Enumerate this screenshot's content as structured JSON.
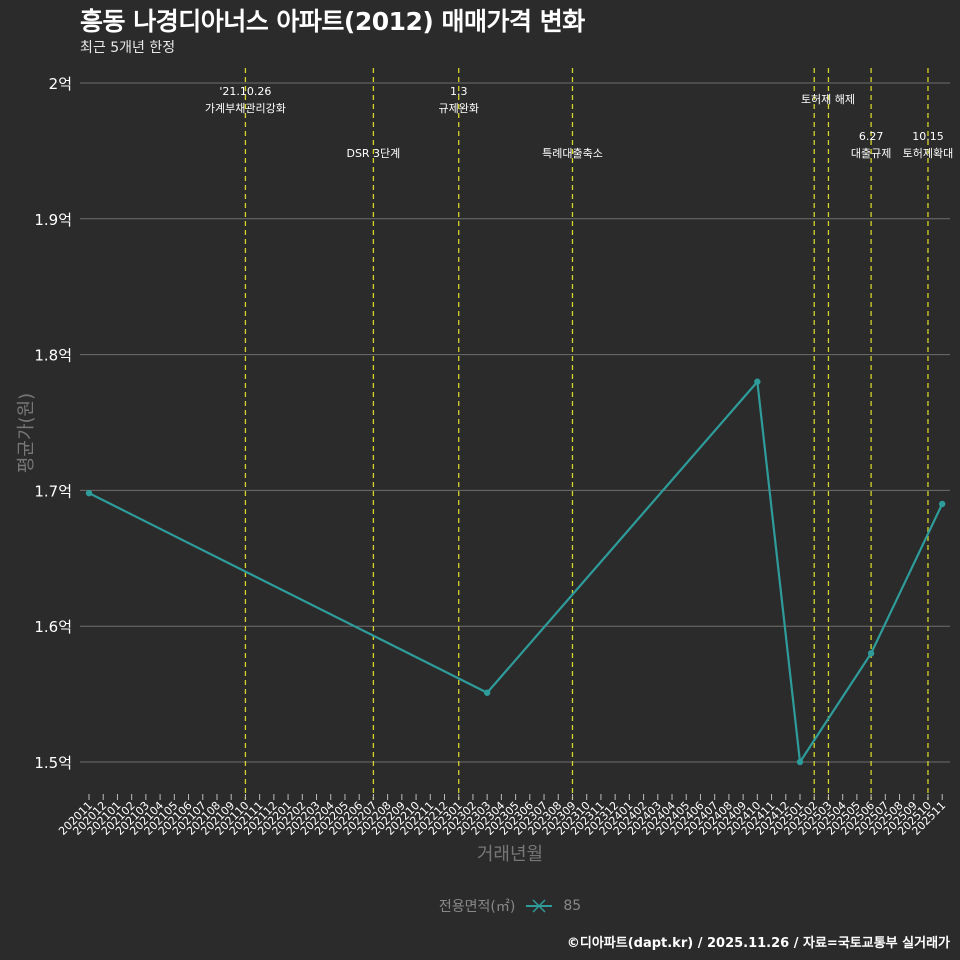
{
  "header": {
    "title": "흥동 나경디아너스 아파트(2012) 매매가격 변화",
    "subtitle": "최근 5개년 한정"
  },
  "axes": {
    "ylabel": "평균가(원)",
    "xlabel": "거래년월"
  },
  "legend": {
    "title": "전용면적(㎡)",
    "items": [
      {
        "label": "85",
        "color": "#2e9c9a"
      }
    ]
  },
  "caption": "©디아파트(dapt.kr) / 2025.11.26 / 자료=국토교통부 실거래가",
  "colors": {
    "background": "#2b2b2b",
    "grid": "#6e6e6e",
    "line": "#2e9c9a",
    "vline": "#d4d42a",
    "text": "#ffffff",
    "muted": "#777777"
  },
  "chart_data": {
    "type": "line",
    "title": "흥동 나경디아너스 아파트(2012) 매매가격 변화",
    "subtitle": "최근 5개년 한정",
    "xlabel": "거래년월",
    "ylabel": "평균가(원)",
    "ylim": [
      1.47,
      2.02
    ],
    "yticks": [
      1.5,
      1.6,
      1.7,
      1.8,
      1.9,
      2.0
    ],
    "ytick_labels": [
      "1.5억",
      "1.6억",
      "1.7억",
      "1.8억",
      "1.9억",
      "2억"
    ],
    "grid": true,
    "legend_position": "bottom",
    "categories": [
      "202011",
      "202012",
      "202101",
      "202102",
      "202103",
      "202104",
      "202105",
      "202106",
      "202107",
      "202108",
      "202109",
      "202110",
      "202111",
      "202112",
      "202201",
      "202202",
      "202203",
      "202204",
      "202205",
      "202206",
      "202207",
      "202208",
      "202209",
      "202210",
      "202211",
      "202212",
      "202301",
      "202302",
      "202303",
      "202304",
      "202305",
      "202306",
      "202307",
      "202308",
      "202309",
      "202310",
      "202311",
      "202312",
      "202401",
      "202402",
      "202403",
      "202404",
      "202405",
      "202406",
      "202407",
      "202408",
      "202409",
      "202410",
      "202411",
      "202412",
      "202501",
      "202502",
      "202503",
      "202504",
      "202505",
      "202506",
      "202507",
      "202508",
      "202509",
      "202510",
      "202511"
    ],
    "series": [
      {
        "name": "85",
        "x": [
          "202011",
          "202303",
          "202410",
          "202501",
          "202506",
          "202511"
        ],
        "values": [
          1.698,
          1.551,
          1.78,
          1.5,
          1.58,
          1.69
        ]
      }
    ],
    "annotations": [
      {
        "x": "202110",
        "label_top": "'21.10.26",
        "label_bottom": "가계부채관리강화",
        "row": 0
      },
      {
        "x": "202207",
        "label_top": "",
        "label_bottom": "DSR 3단계",
        "row": 1
      },
      {
        "x": "202301",
        "label_top": "1.3",
        "label_bottom": "규제완화",
        "row": 0
      },
      {
        "x": "202309",
        "label_top": "",
        "label_bottom": "특례대출축소",
        "row": 1
      },
      {
        "x": "202502",
        "label_top": "",
        "label_bottom": "토허제 해제",
        "row": 0,
        "label_at": 828
      },
      {
        "x": "202503",
        "label_top": "",
        "label_bottom": "",
        "row": 0
      },
      {
        "x": "202506",
        "label_top": "6.27",
        "label_bottom": "대출규제",
        "row": 1
      },
      {
        "x": "202510",
        "label_top": "10.15",
        "label_bottom": "토허제확대",
        "row": 1
      }
    ]
  }
}
